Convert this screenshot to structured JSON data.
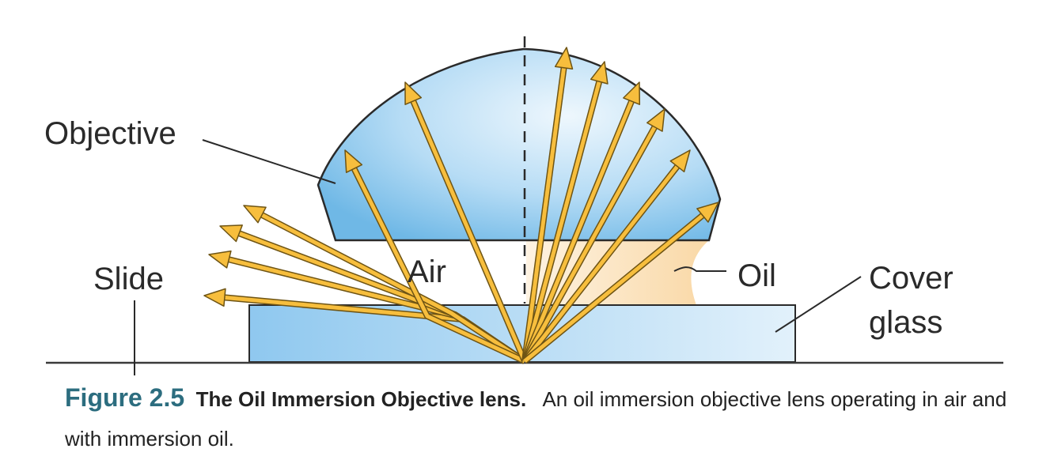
{
  "labels": {
    "objective": "Objective",
    "slide": "Slide",
    "air": "Air",
    "oil": "Oil",
    "cover_line1": "Cover",
    "cover_line2": "glass"
  },
  "caption": {
    "figure_number": "Figure 2.5",
    "title": "The Oil Immersion Objective lens.",
    "text": "An oil immersion objective lens operating in air and with immersion oil."
  },
  "colors": {
    "lens_blue": "#8ec8ef",
    "glass_blue": "#b9ddf5",
    "oil": "#fbe3bf",
    "arrow_fill": "#f7be3d",
    "arrow_stroke": "#6e5414",
    "figure_number": "#2c6d7f"
  }
}
